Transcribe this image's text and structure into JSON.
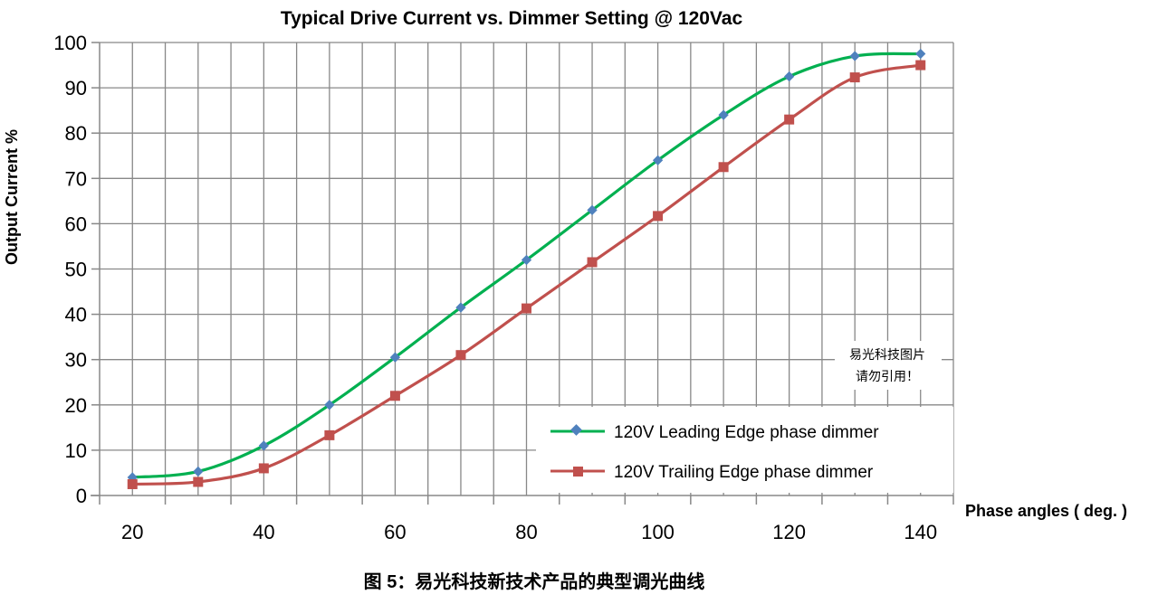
{
  "chart_data": {
    "type": "line",
    "title": "Typical Drive Current vs. Dimmer Setting @ 120Vac",
    "xlabel": "Phase angles ( deg. )",
    "ylabel": "Output Current %",
    "x": [
      20,
      30,
      40,
      50,
      60,
      70,
      80,
      90,
      100,
      110,
      120,
      130,
      140
    ],
    "xticks": [
      "20",
      "40",
      "60",
      "80",
      "100",
      "120",
      "140"
    ],
    "xtick_values": [
      20,
      40,
      60,
      80,
      100,
      120,
      140
    ],
    "yticks": [
      "0",
      "10",
      "20",
      "30",
      "40",
      "50",
      "60",
      "70",
      "80",
      "90",
      "100"
    ],
    "xlim": [
      15,
      145
    ],
    "ylim": [
      0,
      100
    ],
    "grid": true,
    "legend_position": "bottom-right",
    "series": [
      {
        "name": "120V Leading Edge phase dimmer",
        "color": "#00B050",
        "marker": "diamond",
        "values": [
          4,
          5.3,
          11,
          20,
          30.5,
          41.5,
          52,
          63,
          74,
          84,
          92.5,
          97,
          97.5
        ]
      },
      {
        "name": "120V Trailing Edge phase dimmer",
        "color": "#C0504D",
        "marker": "square",
        "values": [
          2.5,
          3,
          6,
          13.3,
          22,
          31,
          41.3,
          51.5,
          61.7,
          72.5,
          83,
          92.3,
          95
        ]
      }
    ],
    "watermark": [
      "易光科技图片",
      "请勿引用！"
    ],
    "caption": "图 5：易光科技新技术产品的典型调光曲线"
  }
}
